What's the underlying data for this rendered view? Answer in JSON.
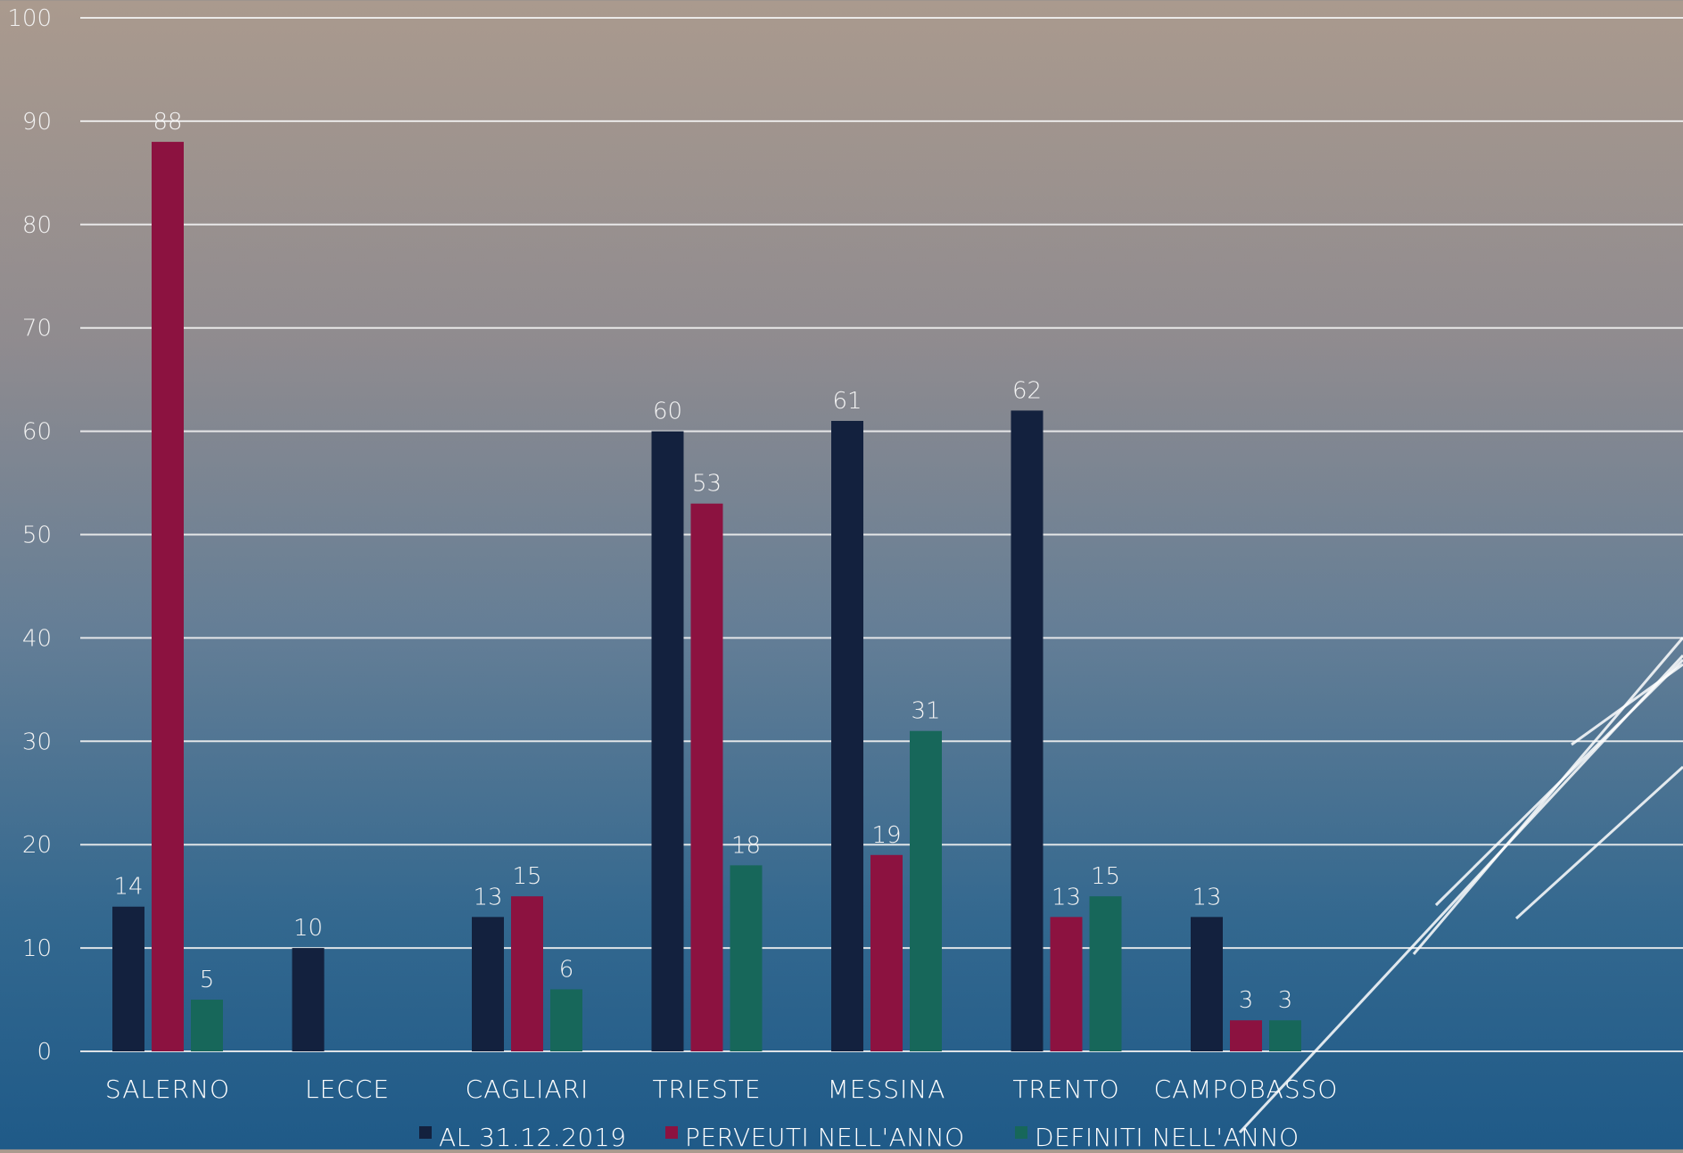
{
  "chart_data": {
    "type": "bar",
    "categories": [
      "SALERNO",
      "LECCE",
      "CAGLIARI",
      "TRIESTE",
      "MESSINA",
      "TRENTO",
      "CAMPOBASSO"
    ],
    "series": [
      {
        "name": "AL 31.12.2019",
        "color": "#13213e",
        "values": [
          14,
          10,
          13,
          60,
          61,
          62,
          13
        ]
      },
      {
        "name": "PERVEUTI NELL'ANNO",
        "color": "#8c1240",
        "values": [
          88,
          null,
          15,
          53,
          19,
          13,
          3
        ]
      },
      {
        "name": "DEFINITI NELL'ANNO",
        "color": "#17675a",
        "values": [
          5,
          null,
          6,
          18,
          31,
          15,
          3
        ]
      }
    ],
    "yticks": [
      "0",
      "10",
      "20",
      "30",
      "40",
      "50",
      "60",
      "70",
      "80",
      "90",
      "100"
    ],
    "ylim": [
      0,
      100
    ],
    "grid": true,
    "legend_position": "bottom-center"
  }
}
